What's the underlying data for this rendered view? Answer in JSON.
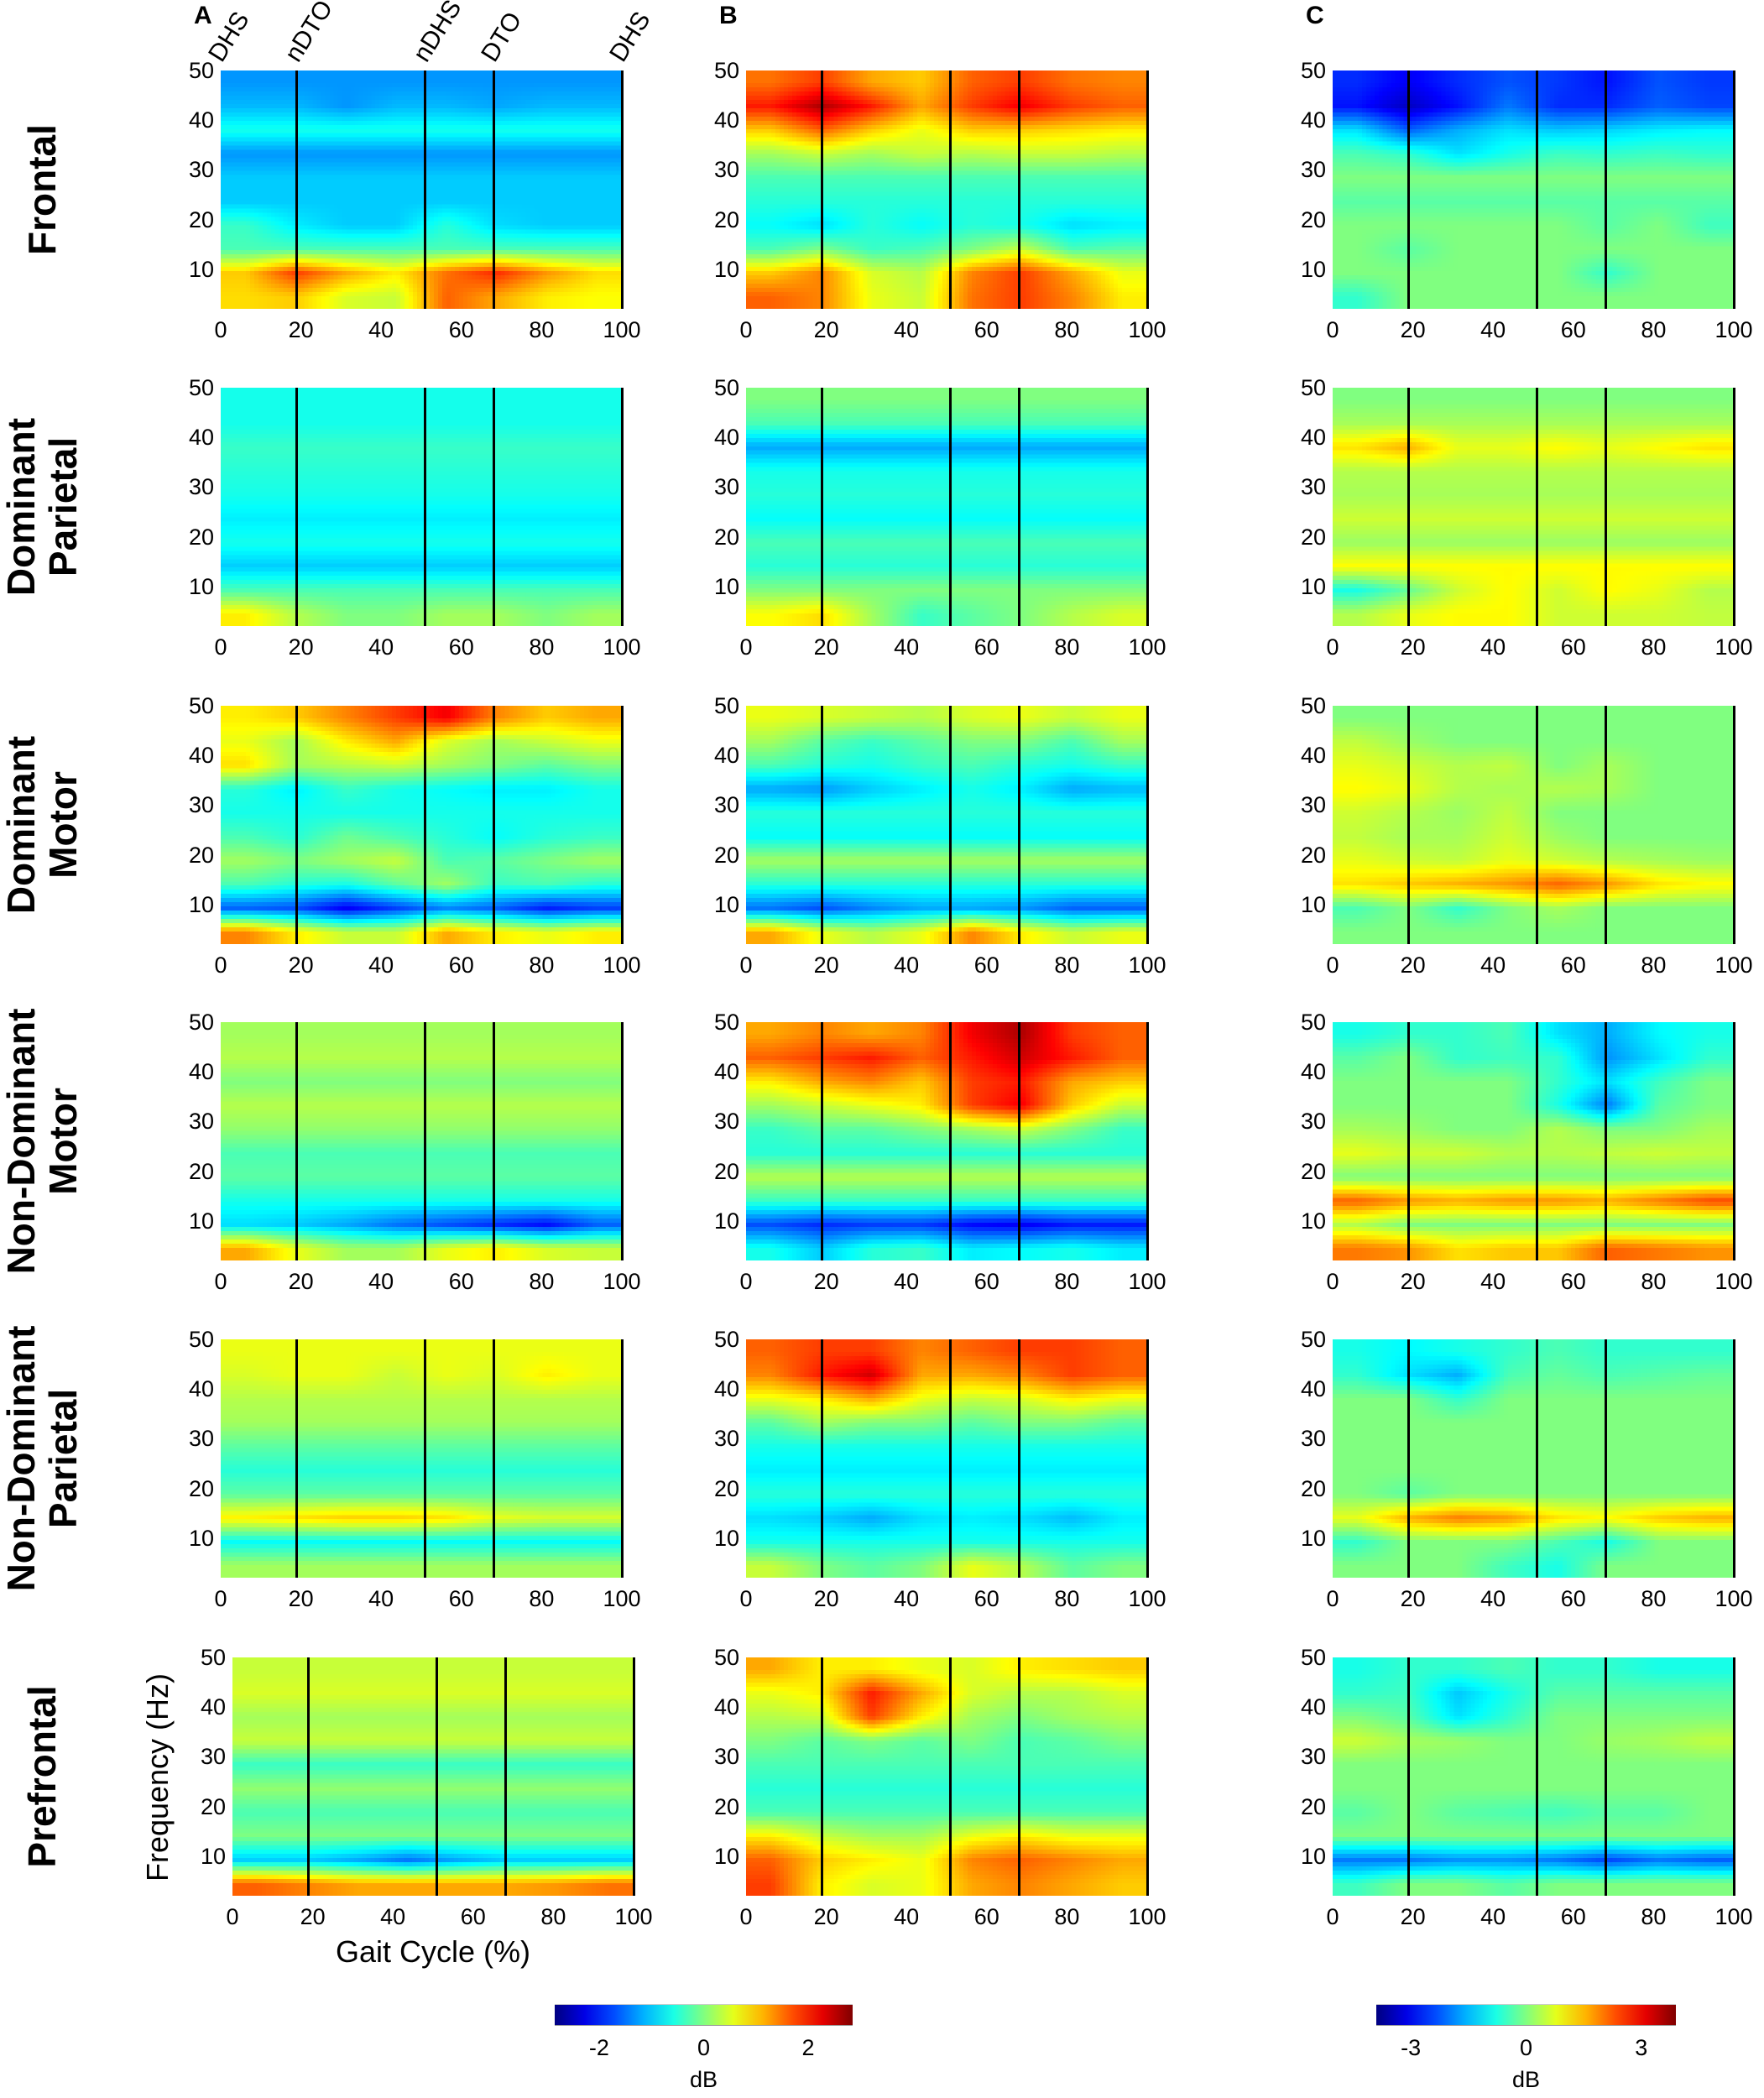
{
  "chart_data": {
    "type": "heatmap",
    "panel_letters": [
      "A",
      "B",
      "C"
    ],
    "row_labels": [
      [
        "Frontal"
      ],
      [
        "Dominant",
        "Parietal"
      ],
      [
        "Dominant",
        "Motor"
      ],
      [
        "Non-Dominant",
        "Motor"
      ],
      [
        "Non-Dominant",
        "Parietal"
      ],
      [
        "Prefrontal"
      ]
    ],
    "events": {
      "labels": [
        "DHS",
        "nDTO",
        "nDHS",
        "DTO",
        "DHS"
      ],
      "x": [
        0,
        19,
        51,
        68,
        100
      ]
    },
    "xlabel": "Gait Cycle (%)",
    "ylabel": "Frequency (Hz)",
    "xlim": [
      0,
      100
    ],
    "ylim": [
      2,
      50
    ],
    "xticks": [
      "0",
      "20",
      "40",
      "60",
      "80",
      "100"
    ],
    "yticks": [
      "10",
      "20",
      "30",
      "40",
      "50"
    ],
    "grid_note": "values in dB; rows = frequency bands 50-45,45-40,...,5-2 Hz (top to bottom); columns = 8 equal gait-cycle bins",
    "colorbars": [
      {
        "label": "dB",
        "ticks": [
          "-2",
          "0",
          "2"
        ],
        "tick_values": [
          -2,
          0,
          2
        ],
        "range": [
          -2.85,
          2.85
        ],
        "colormap": "jet",
        "applies_to": [
          "A",
          "B"
        ]
      },
      {
        "label": "dB",
        "ticks": [
          "-3",
          "0",
          "3"
        ],
        "tick_values": [
          -3,
          0,
          3
        ],
        "range": [
          -3.9,
          3.9
        ],
        "colormap": "jet",
        "applies_to": [
          "C"
        ]
      }
    ],
    "panels": [
      [
        [
          -1.3,
          [
            -1.1,
            -1.1,
            -1.3,
            -1.1,
            -1.1,
            -1.2,
            -1.1,
            -1.1
          ],
          -0.6,
          -1.3,
          -1.0,
          -1.0,
          [
            -0.4,
            -0.8,
            -1,
            -1,
            -0.5,
            -0.9,
            -1,
            -1
          ],
          -0.3,
          [
            1.0,
            1.8,
            1.2,
            0.8,
            1.5,
            1.9,
            1.3,
            0.9
          ],
          [
            0.9,
            1.0,
            0.5,
            0.4,
            1.6,
            1.2,
            0.8,
            0.7
          ]
        ],
        [
          [
            1.5,
            1.8,
            1.2,
            1.0,
            1.6,
            1.8,
            1.5,
            1.4
          ],
          [
            2.0,
            2.6,
            2.0,
            1.2,
            1.8,
            2.2,
            1.8,
            1.6
          ],
          [
            1.0,
            1.6,
            1.0,
            0.6,
            1.0,
            1.0,
            0.9,
            0.8
          ],
          [
            0.2,
            0.4,
            0.2,
            0.4,
            0.3,
            0.4,
            0.4,
            0.3
          ],
          -0.3,
          -0.5,
          [
            -0.7,
            -0.9,
            -0.5,
            -0.7,
            -0.5,
            -0.6,
            -0.9,
            -0.8
          ],
          [
            -0.3,
            0,
            -0.4,
            -0.3,
            0,
            0.4,
            -0.3,
            -0.2
          ],
          [
            1.0,
            1.4,
            0.5,
            0.3,
            1.4,
            1.8,
            1.2,
            0.6
          ],
          [
            1.6,
            1.4,
            0.6,
            0.4,
            1.5,
            1.8,
            1.4,
            0.8
          ]
        ],
        [
          [
            -2.6,
            -3,
            -2.6,
            -2.3,
            -2.5,
            -2.8,
            -2.3,
            -2.5
          ],
          [
            -2.8,
            -3.4,
            -2.8,
            -2.0,
            -2.6,
            -2.6,
            -2.2,
            -2.4
          ],
          [
            -1.2,
            -2.2,
            -1.6,
            -1.2,
            -1.4,
            -1.3,
            -1.1,
            -1.0
          ],
          [
            -0.4,
            -0.6,
            -1.2,
            -0.8,
            -0.5,
            -0.6,
            -0.5,
            -0.6
          ],
          0,
          -0.3,
          [
            0,
            0,
            0,
            0,
            0,
            -0.3,
            0,
            -0.5
          ],
          [
            0,
            -0.3,
            0,
            0,
            0,
            0,
            0,
            0
          ],
          [
            0,
            0,
            0,
            0,
            0,
            -0.6,
            0,
            0
          ],
          [
            -0.6,
            0,
            0,
            0,
            0,
            0,
            0,
            0
          ]
        ]
      ],
      [
        [
          -0.6,
          -0.6,
          -0.4,
          -0.5,
          -0.6,
          -0.8,
          -0.6,
          -1.0,
          -0.3,
          [
            0.8,
            0.3,
            0,
            0,
            0.2,
            0.2,
            0,
            0.2
          ]
        ],
        [
          0,
          -0.3,
          -1.2,
          -0.6,
          -0.5,
          -0.7,
          -0.3,
          -0.5,
          0,
          [
            0.7,
            0.9,
            0.2,
            -0.4,
            -0.2,
            0,
            0.3,
            0.5
          ]
        ],
        [
          0,
          0.3,
          [
            1.2,
            1.6,
            0.8,
            0.8,
            1,
            0.8,
            1,
            1.2
          ],
          0.4,
          0.3,
          0.6,
          0.2,
          1,
          [
            -0.8,
            -0.2,
            0.6,
            1,
            0.6,
            1,
            0.8,
            0.4
          ],
          [
            0.4,
            0.8,
            1,
            1,
            0.6,
            0.6,
            0.6,
            0.5
          ]
        ]
      ],
      [
        [
          [
            0.8,
            1,
            1.4,
            1.8,
            2.2,
            1.4,
            1,
            1.2
          ],
          [
            0.6,
            0.2,
            0.8,
            1.2,
            0.5,
            0.2,
            0.4,
            0.6
          ],
          [
            0.9,
            0.2,
            0.3,
            0.4,
            0.2,
            0,
            -0.2,
            0
          ],
          [
            -0.5,
            -0.8,
            -0.4,
            -0.6,
            -0.7,
            -0.8,
            -0.8,
            -0.6
          ],
          -0.6,
          [
            -0.3,
            -0.5,
            -0.1,
            -0.3,
            -0.5,
            -0.7,
            -0.5,
            -0.4
          ],
          [
            0.2,
            0,
            0.2,
            0.4,
            -0.3,
            -0.2,
            0,
            0.2
          ],
          [
            -0.3,
            -0.5,
            -0.6,
            -0.2,
            0.2,
            -0.4,
            -0.3,
            -0.5
          ],
          [
            -1.6,
            -1.7,
            -2.2,
            -1.8,
            -1.4,
            -1.6,
            -2.0,
            -1.8
          ],
          [
            1.4,
            0.8,
            0.4,
            0.4,
            1.2,
            0.8,
            0.6,
            0.8
          ]
        ],
        [
          [
            0.6,
            0.5,
            0.4,
            0.3,
            0.5,
            0.6,
            0.4,
            0.6
          ],
          [
            0.2,
            -0.2,
            -0.4,
            -0.2,
            0,
            0,
            -0.3,
            0.2
          ],
          [
            -0.3,
            -0.5,
            -0.6,
            -0.4,
            -0.3,
            -0.5,
            -0.6,
            -0.4
          ],
          [
            -1.2,
            -1.3,
            -1.0,
            -0.8,
            -0.6,
            -0.8,
            -1.2,
            -1.1
          ],
          -0.5,
          -0.7,
          0.2,
          -0.5,
          [
            -1.5,
            -1.7,
            -1.4,
            -1.2,
            -1.2,
            -1.3,
            -1.6,
            -1.6
          ],
          [
            1.2,
            0.6,
            0.3,
            0.6,
            1.4,
            0.8,
            0.4,
            0.6
          ]
        ],
        [
          0,
          [
            0.5,
            0.2,
            0,
            0,
            0,
            0,
            0,
            0
          ],
          [
            0.8,
            0.6,
            0.4,
            0.5,
            0,
            0.3,
            0,
            0
          ],
          [
            1,
            0.8,
            0.4,
            0.3,
            0.4,
            0.3,
            0,
            0
          ],
          [
            0.6,
            0.4,
            0.2,
            0.5,
            0,
            0,
            0,
            0
          ],
          [
            0.5,
            0.3,
            0.3,
            0.6,
            0.2,
            0,
            0,
            0
          ],
          [
            0.8,
            0.6,
            0.5,
            0.8,
            0.6,
            0.4,
            0.3,
            0.2
          ],
          [
            1.2,
            1.4,
            1.6,
            1.8,
            2.2,
            1.8,
            1.2,
            1.0
          ],
          [
            -0.4,
            0,
            -0.6,
            0,
            0.3,
            0,
            0,
            0
          ],
          0
        ]
      ],
      [
        [
          0.2,
          0.3,
          0,
          0.3,
          0.1,
          -0.3,
          -0.2,
          -0.6,
          [
            -0.9,
            -1,
            -1.2,
            -1.5,
            -1.7,
            -1.9,
            -2.1,
            -1.6
          ],
          [
            1.2,
            0.6,
            0.2,
            0.2,
            0.6,
            0.8,
            0.5,
            0.4
          ]
        ],
        [
          [
            1.2,
            1.4,
            1.2,
            1.4,
            2.2,
            2.6,
            1.8,
            1.6
          ],
          [
            1.6,
            1.8,
            2.0,
            1.6,
            2.0,
            2.4,
            2.0,
            1.6
          ],
          [
            0.8,
            1.2,
            1.4,
            1.0,
            1.8,
            2.0,
            1.2,
            1.0
          ],
          [
            0.2,
            0.4,
            0.6,
            0.8,
            1.8,
            2.2,
            1.0,
            0.4
          ],
          [
            -0.4,
            -0.2,
            -0.2,
            0,
            0.2,
            0.4,
            0,
            -0.4
          ],
          -0.5,
          0.3,
          -0.4,
          [
            -1.7,
            -1.9,
            -1.8,
            -1.8,
            -2.1,
            -2.2,
            -2.0,
            -2.0
          ],
          [
            -0.6,
            -1,
            -0.5,
            -0.4,
            -0.8,
            -0.7,
            -0.6,
            -0.8
          ]
        ],
        [
          [
            -0.8,
            -0.6,
            -0.6,
            -0.4,
            -1.2,
            -1.6,
            -1.0,
            -0.8
          ],
          [
            -0.3,
            0,
            -0.6,
            -0.5,
            -0.6,
            -1.8,
            -1.2,
            -0.6
          ],
          [
            0,
            0,
            0,
            0,
            -0.6,
            -1.2,
            -0.5,
            0
          ],
          [
            0,
            0,
            0,
            0,
            -0.8,
            -2.0,
            -0.3,
            0
          ],
          [
            0.3,
            0.2,
            0,
            0,
            0.4,
            0,
            0,
            0.3
          ],
          [
            0.8,
            0.6,
            0.6,
            0.4,
            0.4,
            0.5,
            0.6,
            0.5
          ],
          0,
          [
            2.2,
            1.8,
            1.6,
            1.8,
            1.8,
            1.6,
            2.0,
            2.4
          ],
          [
            0.4,
            0,
            0,
            0,
            0,
            0,
            0,
            0
          ],
          [
            2.0,
            1.8,
            1.2,
            1.4,
            1.4,
            2.2,
            2.0,
            1.8
          ]
        ]
      ],
      [
        [
          0.6,
          [
            0.5,
            0.6,
            0.6,
            0.4,
            0.6,
            0.5,
            0.8,
            0.6
          ],
          0.3,
          0.2,
          -0.2,
          -0.5,
          -0.2,
          [
            0.8,
            0.9,
            1.0,
            1.0,
            0.9,
            0.6,
            0.5,
            0.5
          ],
          -0.7,
          0.2
        ],
        [
          [
            1.6,
            1.8,
            1.8,
            1.4,
            1.6,
            1.8,
            1.8,
            1.6
          ],
          [
            1.4,
            2.0,
            2.4,
            1.2,
            1.2,
            1.4,
            1.8,
            1.6
          ],
          [
            0.6,
            0.8,
            1.2,
            0.6,
            0.4,
            0.5,
            0.8,
            0.6
          ],
          [
            -0.2,
            0.2,
            0,
            0,
            -0.2,
            0,
            0,
            -0.2
          ],
          -0.6,
          -0.8,
          -0.5,
          [
            -0.9,
            -1.0,
            -1.2,
            -0.9,
            -0.8,
            -0.9,
            -1.1,
            -0.8
          ],
          -0.6,
          [
            0.4,
            0,
            -0.2,
            0,
            0.6,
            0.3,
            -0.2,
            0
          ]
        ],
        [
          [
            -0.8,
            -1,
            -0.8,
            -0.6,
            -0.4,
            -0.6,
            -0.6,
            -0.6
          ],
          [
            -0.6,
            -1.2,
            -1.6,
            -0.4,
            -0.2,
            -0.4,
            -0.3,
            -0.2
          ],
          [
            0,
            0,
            -0.6,
            0,
            0,
            0,
            0,
            0
          ],
          0,
          0,
          0,
          [
            0,
            -0.3,
            0,
            0,
            0,
            0,
            0,
            0
          ],
          [
            0.8,
            1.6,
            2.0,
            1.8,
            1.2,
            1.0,
            1.4,
            1.6
          ],
          [
            -0.6,
            0,
            0,
            0,
            -0.4,
            -0.8,
            0,
            0
          ],
          [
            0,
            0,
            0,
            -0.5,
            -0.8,
            0,
            0,
            0
          ]
        ]
      ],
      [
        [
          0.4,
          0.5,
          0.2,
          0.4,
          -0.4,
          0.1,
          -0.3,
          0,
          [
            -1.0,
            -1.0,
            -1.2,
            -1.5,
            -1.2,
            -1.0,
            -1.0,
            -1.0
          ],
          [
            1.6,
            1.4,
            1.2,
            1.2,
            1.2,
            1.2,
            1.3,
            1.5
          ]
        ],
        [
          [
            1.2,
            0.8,
            0.8,
            0.6,
            0.5,
            0.8,
            0.9,
            1.0
          ],
          [
            0.6,
            0.8,
            2.0,
            1.2,
            0.5,
            0.3,
            0.3,
            0.5
          ],
          [
            0.3,
            0.4,
            1.8,
            0.8,
            0.2,
            0,
            0.2,
            0.3
          ],
          [
            0,
            -0.2,
            0,
            -0.2,
            0,
            -0.3,
            -0.2,
            0
          ],
          -0.3,
          -0.5,
          -0.3,
          [
            0.8,
            0.4,
            0.2,
            0.2,
            0.6,
            0.8,
            0.6,
            0.6
          ],
          [
            1.6,
            1.0,
            0.8,
            0.6,
            1.4,
            1.6,
            1.4,
            1.2
          ],
          [
            1.8,
            0.8,
            0.5,
            0.6,
            1.2,
            1.4,
            1.2,
            1.0
          ]
        ],
        [
          [
            -0.8,
            -0.6,
            -0.6,
            -0.4,
            -0.6,
            -0.6,
            -0.8,
            -0.8
          ],
          [
            -0.6,
            -0.5,
            -1.4,
            -0.8,
            -0.3,
            -0.3,
            -0.3,
            -0.3
          ],
          [
            0,
            -0.3,
            -1.2,
            -0.6,
            0,
            0,
            0,
            0
          ],
          [
            0.6,
            0.3,
            0.2,
            0,
            0,
            0.2,
            0.3,
            0.5
          ],
          0,
          0,
          [
            -0.3,
            0,
            -0.3,
            -0.4,
            -0.5,
            -0.3,
            -0.3,
            0
          ],
          0,
          [
            -2.0,
            -2.0,
            -1.8,
            -1.8,
            -2.0,
            -2.4,
            -2.0,
            -2.2
          ],
          [
            -0.5,
            0,
            0,
            -0.3,
            0,
            0,
            0,
            0
          ]
        ]
      ]
    ]
  }
}
